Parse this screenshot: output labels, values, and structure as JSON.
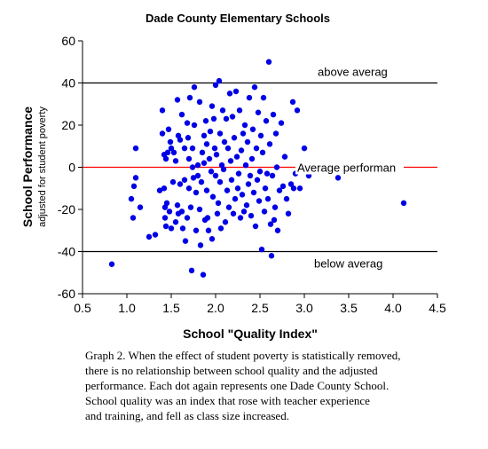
{
  "chart_data": {
    "type": "scatter",
    "title": "Dade County Elementary Schools",
    "ylabel": "School Performance",
    "ylabel_sub": "adjusted for student poverty",
    "xlabel": "School \"Quality Index\"",
    "xlim": [
      0.5,
      4.5
    ],
    "ylim": [
      -60,
      60
    ],
    "x_ticks": [
      "0.5",
      "1.0",
      "1.5",
      "2.0",
      "2.5",
      "3.0",
      "3.5",
      "4.0",
      "4.5"
    ],
    "y_ticks": [
      "60",
      "40",
      "20",
      "0",
      "-20",
      "-40",
      "-60"
    ],
    "grid": false,
    "point_color": "#0000e6",
    "reference_lines": [
      {
        "y": 40,
        "color": "#000000",
        "label": "above averag"
      },
      {
        "y": 0,
        "color": "#ff0000",
        "label": "Average performan"
      },
      {
        "y": -40,
        "color": "#000000",
        "label": "below averag"
      }
    ],
    "points": [
      [
        0.83,
        -46
      ],
      [
        1.05,
        -15
      ],
      [
        1.07,
        -24
      ],
      [
        1.08,
        -9
      ],
      [
        1.1,
        9
      ],
      [
        1.1,
        -5
      ],
      [
        1.15,
        -19
      ],
      [
        1.25,
        -33
      ],
      [
        1.32,
        -32
      ],
      [
        1.37,
        -11
      ],
      [
        1.4,
        27
      ],
      [
        1.4,
        16
      ],
      [
        1.42,
        6
      ],
      [
        1.42,
        -10
      ],
      [
        1.43,
        -19
      ],
      [
        1.43,
        -24
      ],
      [
        1.44,
        4
      ],
      [
        1.44,
        -28
      ],
      [
        1.45,
        -17
      ],
      [
        1.46,
        7
      ],
      [
        1.47,
        18
      ],
      [
        1.48,
        -21
      ],
      [
        1.49,
        12
      ],
      [
        1.5,
        9
      ],
      [
        1.5,
        -29
      ],
      [
        1.52,
        -7
      ],
      [
        1.53,
        7
      ],
      [
        1.55,
        3
      ],
      [
        1.55,
        -26
      ],
      [
        1.57,
        32
      ],
      [
        1.57,
        -18
      ],
      [
        1.58,
        15
      ],
      [
        1.58,
        -22
      ],
      [
        1.6,
        13
      ],
      [
        1.6,
        -8
      ],
      [
        1.62,
        25
      ],
      [
        1.62,
        -21
      ],
      [
        1.63,
        -29
      ],
      [
        1.65,
        9
      ],
      [
        1.65,
        -6
      ],
      [
        1.66,
        -35
      ],
      [
        1.68,
        21
      ],
      [
        1.68,
        -24
      ],
      [
        1.69,
        14
      ],
      [
        1.7,
        4
      ],
      [
        1.7,
        -10
      ],
      [
        1.71,
        33
      ],
      [
        1.72,
        -19
      ],
      [
        1.73,
        -49
      ],
      [
        1.74,
        9
      ],
      [
        1.74,
        0
      ],
      [
        1.75,
        -5
      ],
      [
        1.76,
        38
      ],
      [
        1.76,
        20
      ],
      [
        1.78,
        -12
      ],
      [
        1.78,
        -30
      ],
      [
        1.8,
        -4
      ],
      [
        1.8,
        1
      ],
      [
        1.82,
        31
      ],
      [
        1.82,
        -20
      ],
      [
        1.83,
        -37
      ],
      [
        1.84,
        -7
      ],
      [
        1.85,
        7
      ],
      [
        1.86,
        -51
      ],
      [
        1.87,
        15
      ],
      [
        1.87,
        2
      ],
      [
        1.88,
        -25
      ],
      [
        1.89,
        22
      ],
      [
        1.9,
        -11
      ],
      [
        1.9,
        11
      ],
      [
        1.91,
        -24
      ],
      [
        1.92,
        -30
      ],
      [
        1.93,
        4
      ],
      [
        1.94,
        17
      ],
      [
        1.95,
        -2
      ],
      [
        1.96,
        -34
      ],
      [
        1.96,
        29
      ],
      [
        1.97,
        -14
      ],
      [
        1.98,
        23
      ],
      [
        1.99,
        9
      ],
      [
        2.0,
        -4
      ],
      [
        2.0,
        39
      ],
      [
        2.01,
        6
      ],
      [
        2.02,
        -22
      ],
      [
        2.03,
        -17
      ],
      [
        2.04,
        41
      ],
      [
        2.05,
        16
      ],
      [
        2.05,
        -7
      ],
      [
        2.06,
        -29
      ],
      [
        2.07,
        1
      ],
      [
        2.08,
        27
      ],
      [
        2.09,
        -1
      ],
      [
        2.1,
        12
      ],
      [
        2.11,
        -26
      ],
      [
        2.12,
        23
      ],
      [
        2.13,
        -11
      ],
      [
        2.14,
        9
      ],
      [
        2.15,
        -19
      ],
      [
        2.16,
        35
      ],
      [
        2.17,
        3
      ],
      [
        2.18,
        -6
      ],
      [
        2.19,
        24
      ],
      [
        2.2,
        -22
      ],
      [
        2.21,
        14
      ],
      [
        2.22,
        -15
      ],
      [
        2.23,
        36
      ],
      [
        2.24,
        5
      ],
      [
        2.25,
        -10
      ],
      [
        2.26,
        -3
      ],
      [
        2.27,
        27
      ],
      [
        2.28,
        -24
      ],
      [
        2.29,
        8
      ],
      [
        2.3,
        -13
      ],
      [
        2.31,
        16
      ],
      [
        2.32,
        -21
      ],
      [
        2.33,
        20
      ],
      [
        2.34,
        1
      ],
      [
        2.35,
        -18
      ],
      [
        2.36,
        12
      ],
      [
        2.37,
        -8
      ],
      [
        2.38,
        33
      ],
      [
        2.39,
        -4
      ],
      [
        2.4,
        -23
      ],
      [
        2.41,
        4
      ],
      [
        2.42,
        18
      ],
      [
        2.43,
        -12
      ],
      [
        2.44,
        38
      ],
      [
        2.45,
        -28
      ],
      [
        2.46,
        9
      ],
      [
        2.47,
        -6
      ],
      [
        2.48,
        26
      ],
      [
        2.49,
        -16
      ],
      [
        2.5,
        -2
      ],
      [
        2.51,
        15
      ],
      [
        2.52,
        -39
      ],
      [
        2.53,
        7
      ],
      [
        2.54,
        33
      ],
      [
        2.55,
        -21
      ],
      [
        2.56,
        -10
      ],
      [
        2.57,
        22
      ],
      [
        2.58,
        -3
      ],
      [
        2.59,
        -15
      ],
      [
        2.6,
        50
      ],
      [
        2.61,
        11
      ],
      [
        2.62,
        -27
      ],
      [
        2.63,
        -42
      ],
      [
        2.64,
        -4
      ],
      [
        2.65,
        25
      ],
      [
        2.66,
        -25
      ],
      [
        2.67,
        -19
      ],
      [
        2.68,
        16
      ],
      [
        2.69,
        0
      ],
      [
        2.7,
        -30
      ],
      [
        2.72,
        -11
      ],
      [
        2.74,
        21
      ],
      [
        2.76,
        -9
      ],
      [
        2.78,
        5
      ],
      [
        2.8,
        -15
      ],
      [
        2.82,
        -22
      ],
      [
        2.85,
        -8
      ],
      [
        2.87,
        31
      ],
      [
        2.88,
        -10
      ],
      [
        2.9,
        -3
      ],
      [
        2.92,
        27
      ],
      [
        2.95,
        -10
      ],
      [
        3.0,
        9
      ],
      [
        3.05,
        -4
      ],
      [
        3.08,
        2
      ],
      [
        3.38,
        -5
      ],
      [
        4.12,
        -17
      ]
    ]
  },
  "caption": {
    "lines": [
      "Graph 2.  When the effect of student poverty is statistically removed,",
      "there is no relationship between school quality and the adjusted",
      "performance.  Each dot again represents one Dade County School.",
      "School quality was an index that rose with teacher experience",
      "and training, and fell as class size increased."
    ]
  }
}
